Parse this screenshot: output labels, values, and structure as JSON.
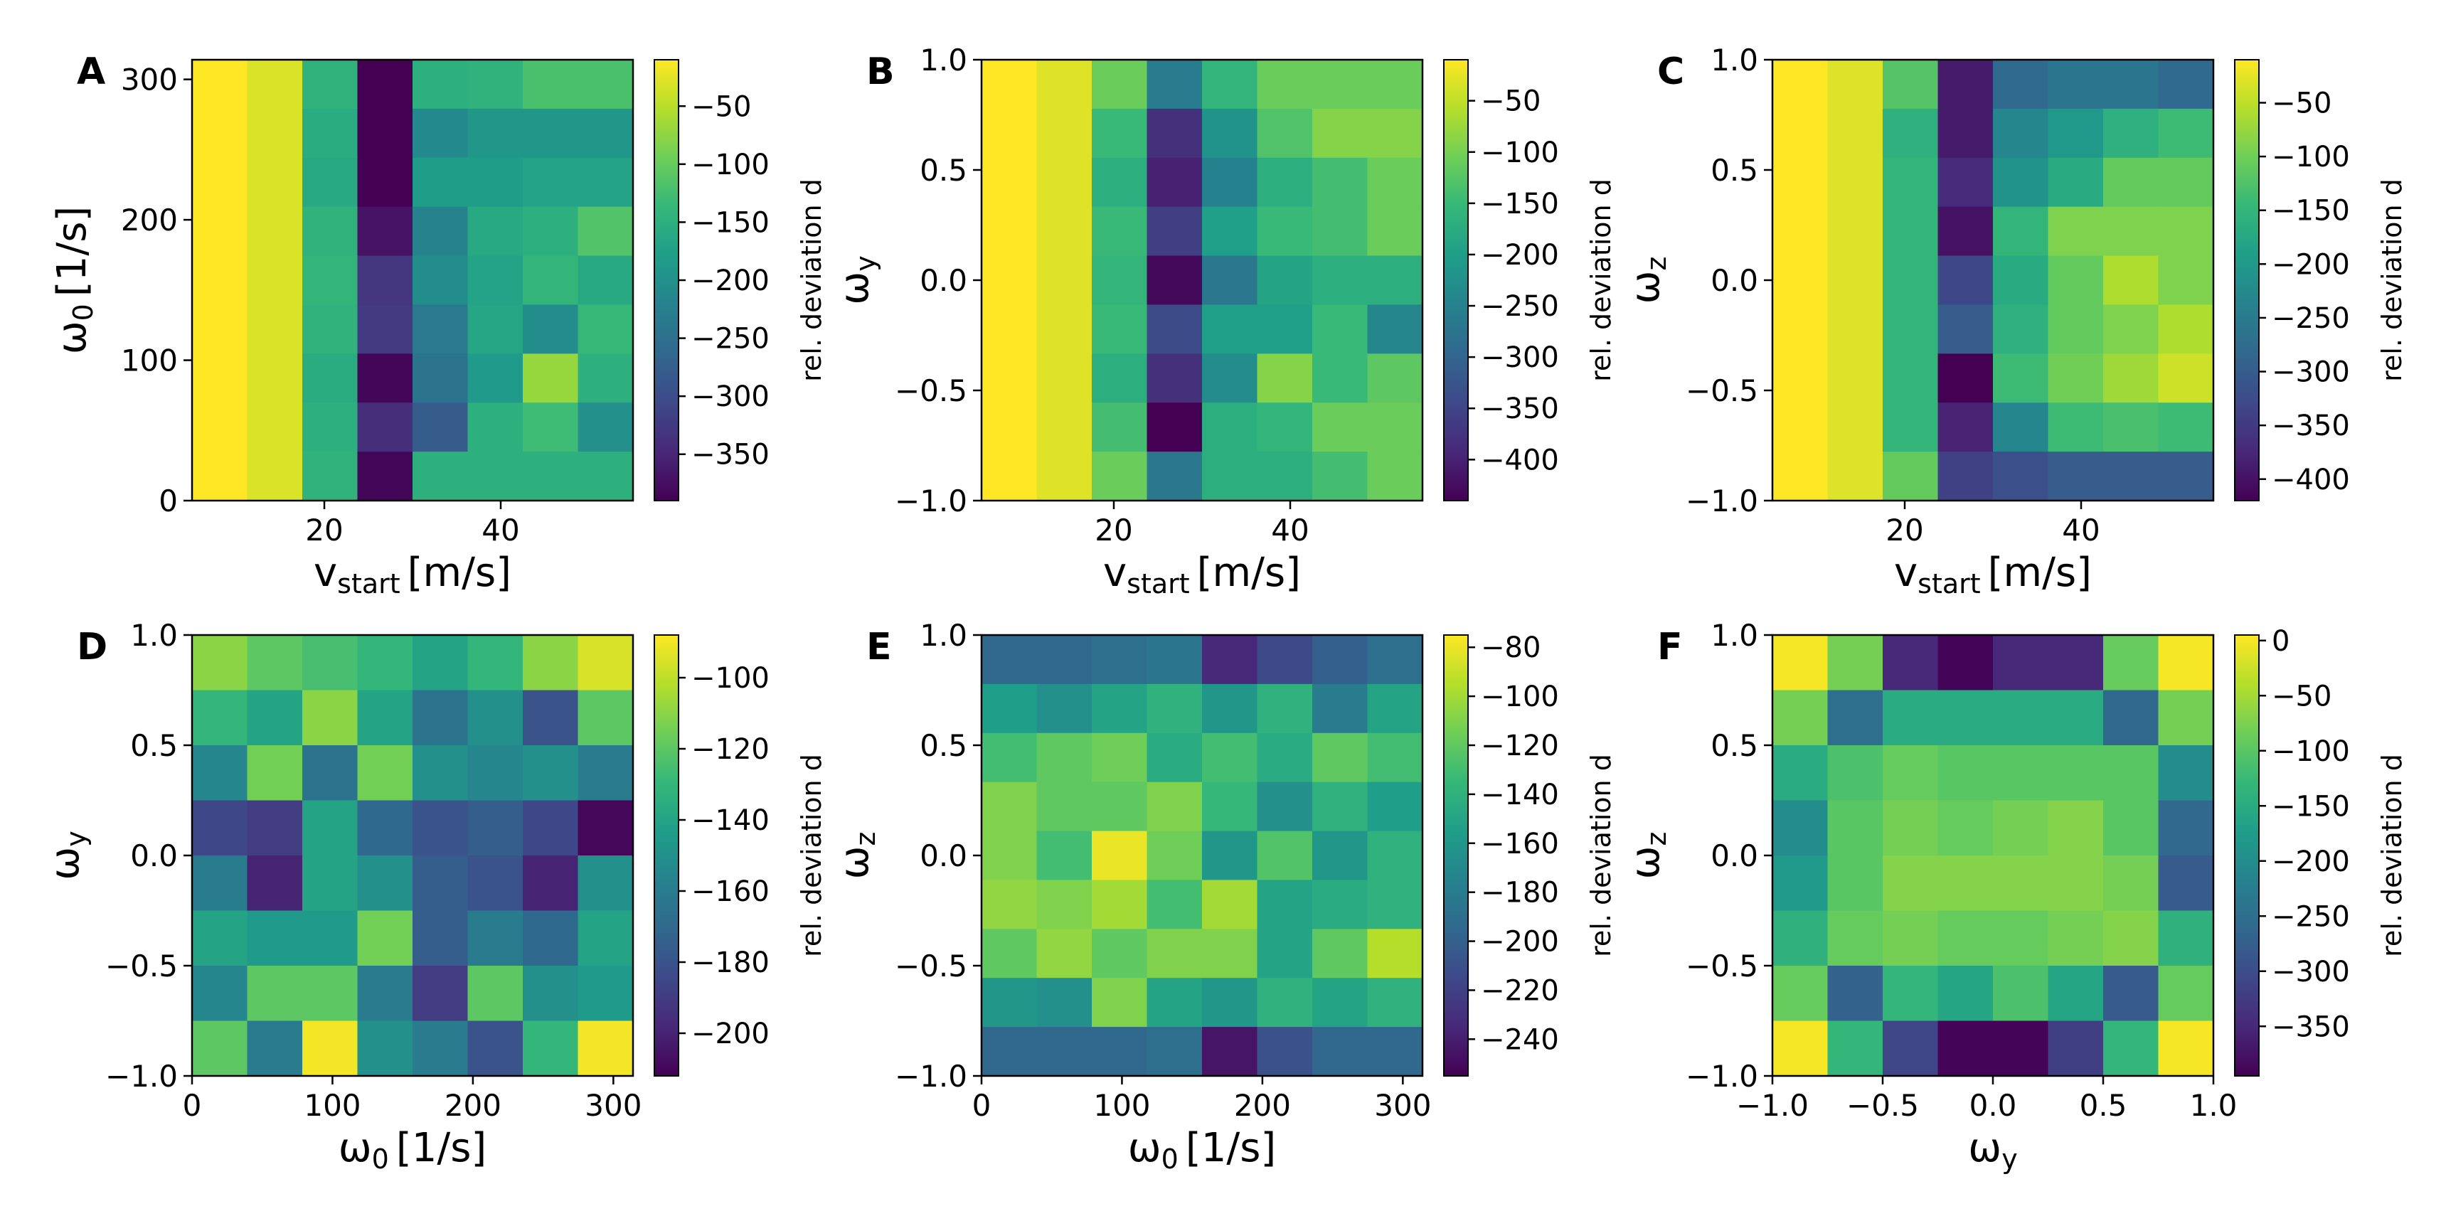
{
  "colors": {
    "viridis": [
      "#440154",
      "#482878",
      "#3e4989",
      "#31688e",
      "#26828e",
      "#1f9e89",
      "#35b779",
      "#6ece58",
      "#b5de2b",
      "#fde725"
    ],
    "axis": "#000000",
    "background": "#ffffff"
  },
  "chart_data": [
    {
      "type": "heatmap",
      "panel": "A",
      "xlabel_main": "v",
      "xlabel_sub": "start",
      "xlabel_unit": "[m/s]",
      "ylabel_main": "ω",
      "ylabel_sub": "0",
      "ylabel_unit": "[1/s]",
      "xlim": [
        5,
        55
      ],
      "ylim": [
        0,
        314
      ],
      "xticks": [
        20,
        40
      ],
      "yticks": [
        0,
        100,
        200,
        300
      ],
      "colorbar_label": "rel. deviation d",
      "colorbar_ticks": [
        -50,
        -100,
        -150,
        -200,
        -250,
        -300,
        -350
      ],
      "clim": [
        -390,
        -10
      ],
      "grid": [
        [
          -10,
          -30,
          -145,
          -395,
          -150,
          -145,
          -120,
          -120
        ],
        [
          -10,
          -30,
          -155,
          -395,
          -210,
          -190,
          -190,
          -190
        ],
        [
          -10,
          -30,
          -160,
          -390,
          -180,
          -180,
          -170,
          -170
        ],
        [
          -10,
          -30,
          -145,
          -370,
          -220,
          -160,
          -150,
          -115
        ],
        [
          -10,
          -30,
          -140,
          -330,
          -205,
          -170,
          -140,
          -160
        ],
        [
          -10,
          -30,
          -145,
          -325,
          -235,
          -165,
          -205,
          -135
        ],
        [
          -10,
          -30,
          -155,
          -385,
          -245,
          -185,
          -70,
          -150
        ],
        [
          -10,
          -30,
          -150,
          -340,
          -280,
          -150,
          -130,
          -200
        ],
        [
          -10,
          -30,
          -145,
          -385,
          -150,
          -150,
          -150,
          -150
        ]
      ]
    },
    {
      "type": "heatmap",
      "panel": "B",
      "xlabel_main": "v",
      "xlabel_sub": "start",
      "xlabel_unit": "[m/s]",
      "ylabel_main": "ω",
      "ylabel_sub": "y",
      "ylabel_unit": "",
      "xlim": [
        5,
        55
      ],
      "ylim": [
        -1.0,
        1.0
      ],
      "xticks": [
        20,
        40
      ],
      "yticks": [
        -1.0,
        -0.5,
        0.0,
        0.5,
        1.0
      ],
      "colorbar_label": "rel. deviation d",
      "colorbar_ticks": [
        -50,
        -100,
        -150,
        -200,
        -250,
        -300,
        -350,
        -400
      ],
      "clim": [
        -440,
        -10
      ],
      "grid": [
        [
          -10,
          -30,
          -110,
          -260,
          -160,
          -110,
          -110,
          -110
        ],
        [
          -10,
          -30,
          -150,
          -380,
          -220,
          -130,
          -90,
          -90
        ],
        [
          -10,
          -30,
          -170,
          -400,
          -250,
          -170,
          -140,
          -110
        ],
        [
          -10,
          -30,
          -150,
          -360,
          -200,
          -150,
          -140,
          -110
        ],
        [
          -10,
          -30,
          -160,
          -430,
          -270,
          -190,
          -170,
          -170
        ],
        [
          -10,
          -30,
          -150,
          -340,
          -200,
          -200,
          -150,
          -240
        ],
        [
          -10,
          -30,
          -170,
          -380,
          -230,
          -90,
          -150,
          -120
        ],
        [
          -10,
          -30,
          -140,
          -440,
          -170,
          -160,
          -110,
          -110
        ],
        [
          -10,
          -30,
          -110,
          -270,
          -170,
          -170,
          -140,
          -110
        ]
      ]
    },
    {
      "type": "heatmap",
      "panel": "C",
      "xlabel_main": "v",
      "xlabel_sub": "start",
      "xlabel_unit": "[m/s]",
      "ylabel_main": "ω",
      "ylabel_sub": "z",
      "ylabel_unit": "",
      "xlim": [
        5,
        55
      ],
      "ylim": [
        -1.0,
        1.0
      ],
      "xticks": [
        20,
        40
      ],
      "yticks": [
        -1.0,
        -0.5,
        0.0,
        0.5,
        1.0
      ],
      "colorbar_label": "rel. deviation d",
      "colorbar_ticks": [
        -50,
        -100,
        -150,
        -200,
        -250,
        -300,
        -350,
        -400
      ],
      "clim": [
        -420,
        -10
      ],
      "grid": [
        [
          -10,
          -30,
          -120,
          -390,
          -280,
          -260,
          -260,
          -280
        ],
        [
          -10,
          -30,
          -160,
          -390,
          -230,
          -200,
          -160,
          -140
        ],
        [
          -10,
          -30,
          -150,
          -370,
          -210,
          -170,
          -110,
          -110
        ],
        [
          -10,
          -30,
          -150,
          -400,
          -150,
          -90,
          -90,
          -90
        ],
        [
          -10,
          -30,
          -150,
          -330,
          -170,
          -110,
          -60,
          -90
        ],
        [
          -10,
          -30,
          -150,
          -300,
          -160,
          -110,
          -90,
          -60
        ],
        [
          -10,
          -30,
          -150,
          -430,
          -140,
          -100,
          -70,
          -40
        ],
        [
          -10,
          -30,
          -150,
          -380,
          -230,
          -140,
          -130,
          -140
        ],
        [
          -10,
          -30,
          -110,
          -340,
          -320,
          -300,
          -300,
          -300
        ]
      ]
    },
    {
      "type": "heatmap",
      "panel": "D",
      "xlabel_main": "ω",
      "xlabel_sub": "0",
      "xlabel_unit": "[1/s]",
      "ylabel_main": "ω",
      "ylabel_sub": "y",
      "ylabel_unit": "",
      "xlim": [
        0,
        314
      ],
      "ylim": [
        -1.0,
        1.0
      ],
      "xticks": [
        0,
        100,
        200,
        300
      ],
      "yticks": [
        -1.0,
        -0.5,
        0.0,
        0.5,
        1.0
      ],
      "colorbar_label": "rel. deviation d",
      "colorbar_ticks": [
        -100,
        -120,
        -140,
        -160,
        -180,
        -200
      ],
      "clim": [
        -212,
        -88
      ],
      "grid": [
        [
          -110,
          -120,
          -125,
          -130,
          -140,
          -130,
          -110,
          -95
        ],
        [
          -130,
          -140,
          -110,
          -140,
          -165,
          -150,
          -180,
          -120
        ],
        [
          -155,
          -115,
          -165,
          -115,
          -150,
          -155,
          -150,
          -160
        ],
        [
          -185,
          -190,
          -140,
          -170,
          -180,
          -175,
          -185,
          -210
        ],
        [
          -160,
          -200,
          -140,
          -150,
          -175,
          -180,
          -200,
          -150
        ],
        [
          -140,
          -145,
          -145,
          -115,
          -175,
          -160,
          -170,
          -140
        ],
        [
          -155,
          -120,
          -120,
          -160,
          -190,
          -120,
          -150,
          -145
        ],
        [
          -120,
          -160,
          -90,
          -150,
          -160,
          -180,
          -130,
          -90
        ]
      ]
    },
    {
      "type": "heatmap",
      "panel": "E",
      "xlabel_main": "ω",
      "xlabel_sub": "0",
      "xlabel_unit": "[1/s]",
      "ylabel_main": "ω",
      "ylabel_sub": "z",
      "ylabel_unit": "",
      "xlim": [
        0,
        314
      ],
      "ylim": [
        -1.0,
        1.0
      ],
      "xticks": [
        0,
        100,
        200,
        300
      ],
      "yticks": [
        -1.0,
        -0.5,
        0.0,
        0.5,
        1.0
      ],
      "colorbar_label": "rel. deviation d",
      "colorbar_ticks": [
        -80,
        -100,
        -120,
        -140,
        -160,
        -180,
        -200,
        -220,
        -240
      ],
      "clim": [
        -255,
        -75
      ],
      "grid": [
        [
          -195,
          -195,
          -190,
          -185,
          -235,
          -215,
          -200,
          -190
        ],
        [
          -155,
          -165,
          -150,
          -140,
          -160,
          -140,
          -180,
          -150
        ],
        [
          -130,
          -120,
          -115,
          -145,
          -130,
          -145,
          -120,
          -130
        ],
        [
          -110,
          -120,
          -120,
          -110,
          -135,
          -165,
          -140,
          -155
        ],
        [
          -110,
          -130,
          -80,
          -115,
          -160,
          -125,
          -160,
          -140
        ],
        [
          -105,
          -110,
          -100,
          -130,
          -100,
          -150,
          -145,
          -140
        ],
        [
          -120,
          -105,
          -120,
          -110,
          -110,
          -150,
          -120,
          -95
        ],
        [
          -160,
          -165,
          -110,
          -150,
          -160,
          -140,
          -150,
          -140
        ],
        [
          -195,
          -195,
          -195,
          -190,
          -245,
          -210,
          -195,
          -195
        ]
      ]
    },
    {
      "type": "heatmap",
      "panel": "F",
      "xlabel_main": "ω",
      "xlabel_sub": "y",
      "xlabel_unit": "",
      "ylabel_main": "ω",
      "ylabel_sub": "z",
      "ylabel_unit": "",
      "xlim": [
        -1.0,
        1.0
      ],
      "ylim": [
        -1.0,
        1.0
      ],
      "xticks": [
        -1.0,
        -0.5,
        0.0,
        0.5,
        1.0
      ],
      "yticks": [
        -1.0,
        -0.5,
        0.0,
        0.5,
        1.0
      ],
      "colorbar_label": "rel. deviation d",
      "colorbar_ticks": [
        0,
        -50,
        -100,
        -150,
        -200,
        -250,
        -300,
        -350
      ],
      "clim": [
        -395,
        5
      ],
      "grid": [
        [
          0,
          -80,
          -350,
          -390,
          -350,
          -350,
          -90,
          0
        ],
        [
          -80,
          -250,
          -150,
          -150,
          -150,
          -150,
          -260,
          -80
        ],
        [
          -150,
          -110,
          -90,
          -100,
          -100,
          -100,
          -100,
          -200
        ],
        [
          -200,
          -100,
          -80,
          -90,
          -80,
          -70,
          -100,
          -260
        ],
        [
          -180,
          -100,
          -70,
          -70,
          -70,
          -70,
          -80,
          -280
        ],
        [
          -140,
          -90,
          -80,
          -90,
          -90,
          -80,
          -70,
          -140
        ],
        [
          -90,
          -270,
          -130,
          -160,
          -110,
          -160,
          -280,
          -90
        ],
        [
          0,
          -130,
          -310,
          -390,
          -390,
          -320,
          -130,
          0
        ]
      ]
    }
  ]
}
